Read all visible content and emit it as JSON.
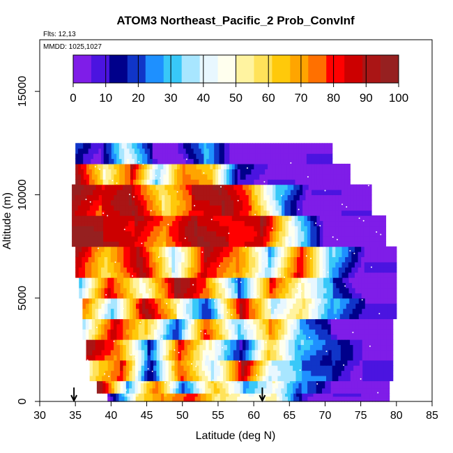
{
  "chart_data": {
    "type": "heatmap",
    "title": "ATOM3 Northeast_Pacific_2 Prob_ConvInf",
    "flights_label": "Flts: 12,13",
    "mmdd_label": "MMDD: 1025,1027",
    "xlabel": "Latitude (deg N)",
    "ylabel": "Altitude (m)",
    "xlim": [
      30,
      85
    ],
    "ylim": [
      0,
      17500
    ],
    "x_ticks": [
      "30",
      "35",
      "40",
      "45",
      "50",
      "55",
      "60",
      "65",
      "70",
      "75",
      "80",
      "85"
    ],
    "y_ticks": [
      "0",
      "5000",
      "10000",
      "15000"
    ],
    "colorbar": {
      "ticks": [
        "0",
        "10",
        "20",
        "30",
        "40",
        "50",
        "60",
        "70",
        "80",
        "90",
        "100"
      ],
      "colors": [
        "#7f1de8",
        "#4b14e0",
        "#00008b",
        "#1035c8",
        "#1e90ff",
        "#38c8f8",
        "#a8e6ff",
        "#e8f7ff",
        "#ffffee",
        "#fff3a0",
        "#ffe25a",
        "#ffc90a",
        "#ffa500",
        "#ff7000",
        "#ff0000",
        "#cc0000",
        "#aa1515",
        "#962020"
      ]
    },
    "arrows_at_latitude": [
      34.8,
      61.2
    ],
    "altitude_layer_step_m": 250,
    "series": [
      {
        "lat_start": 39.5,
        "lat_end": 79.0,
        "alt_bottom": 0,
        "alt_top": 400,
        "values": [
          5,
          50,
          70,
          85,
          55,
          40,
          50,
          10,
          0,
          0
        ]
      },
      {
        "lat_start": 38.0,
        "lat_end": 79.0,
        "alt_bottom": 400,
        "alt_top": 1000,
        "values": [
          92,
          30,
          80,
          20,
          60,
          30,
          50,
          20,
          0,
          0
        ]
      },
      {
        "lat_start": 37.0,
        "lat_end": 79.5,
        "alt_bottom": 1000,
        "alt_top": 2000,
        "values": [
          60,
          85,
          10,
          75,
          40,
          90,
          35,
          25,
          20,
          5
        ]
      },
      {
        "lat_start": 36.5,
        "lat_end": 79.5,
        "alt_bottom": 2000,
        "alt_top": 3000,
        "values": [
          88,
          70,
          20,
          85,
          45,
          10,
          65,
          30,
          15,
          0
        ]
      },
      {
        "lat_start": 36.0,
        "lat_end": 79.5,
        "alt_bottom": 3000,
        "alt_top": 4000,
        "values": [
          40,
          90,
          60,
          15,
          80,
          35,
          70,
          25,
          10,
          0
        ]
      },
      {
        "lat_start": 36.0,
        "lat_end": 80.0,
        "alt_bottom": 4000,
        "alt_top": 5000,
        "values": [
          75,
          30,
          90,
          55,
          20,
          85,
          40,
          60,
          25,
          5
        ]
      },
      {
        "lat_start": 35.5,
        "lat_end": 80.0,
        "alt_bottom": 5000,
        "alt_top": 6000,
        "values": [
          30,
          85,
          50,
          92,
          70,
          25,
          80,
          45,
          20,
          0
        ]
      },
      {
        "lat_start": 35.0,
        "lat_end": 80.0,
        "alt_bottom": 6000,
        "alt_top": 7500,
        "values": [
          92,
          60,
          88,
          40,
          90,
          70,
          30,
          85,
          30,
          0
        ]
      },
      {
        "lat_start": 34.5,
        "lat_end": 78.5,
        "alt_bottom": 7500,
        "alt_top": 9000,
        "values": [
          95,
          92,
          88,
          70,
          92,
          85,
          90,
          40,
          0,
          0
        ]
      },
      {
        "lat_start": 34.5,
        "lat_end": 76.5,
        "alt_bottom": 9000,
        "alt_top": 10500,
        "values": [
          95,
          80,
          90,
          60,
          85,
          90,
          70,
          30,
          0,
          0
        ]
      },
      {
        "lat_start": 35.0,
        "lat_end": 73.5,
        "alt_bottom": 10500,
        "alt_top": 11500,
        "values": [
          92,
          55,
          85,
          30,
          75,
          65,
          10,
          0,
          0,
          0
        ]
      },
      {
        "lat_start": 35.0,
        "lat_end": 71.0,
        "alt_bottom": 11500,
        "alt_top": 12500,
        "values": [
          20,
          5,
          40,
          10,
          5,
          25,
          0,
          0,
          0,
          0
        ]
      }
    ]
  }
}
